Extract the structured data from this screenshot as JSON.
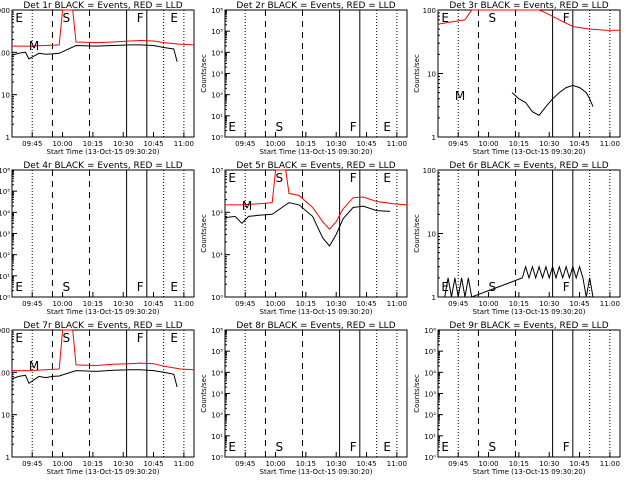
{
  "figure": {
    "common_xlabel": "Start Time (13-Oct-15 09:30:20)",
    "ylabel": "Counts/sec",
    "x_ticks": [
      "09:45",
      "10:00",
      "10:15",
      "10:30",
      "10:45",
      "11:00"
    ],
    "colors": {
      "events": "#000000",
      "lld": "#ff0000"
    }
  },
  "chart_data": [
    {
      "id": "det1r",
      "type": "line",
      "title": "Det 1r BLACK = Events, RED = LLD",
      "yscale": "log",
      "ylim": [
        1,
        1000
      ],
      "y_ticks": [
        "1",
        "10",
        "100",
        "1000"
      ],
      "markers": [
        "E",
        "M",
        "S",
        "F",
        "E"
      ],
      "series": [
        {
          "color": "#ff0000",
          "points": [
            [
              0,
              140
            ],
            [
              5,
              140
            ],
            [
              10,
              145
            ],
            [
              14,
              150
            ],
            [
              15,
              1000
            ],
            [
              18,
              1000
            ],
            [
              19,
              175
            ],
            [
              25,
              170
            ],
            [
              30,
              175
            ],
            [
              35,
              185
            ],
            [
              38,
              190
            ],
            [
              42,
              185
            ],
            [
              45,
              170
            ],
            [
              50,
              155
            ],
            [
              54,
              150
            ]
          ]
        },
        {
          "color": "#000000",
          "points": [
            [
              0,
              85
            ],
            [
              2,
              95
            ],
            [
              4,
              100
            ],
            [
              5,
              70
            ],
            [
              8,
              95
            ],
            [
              10,
              90
            ],
            [
              12,
              92
            ],
            [
              14,
              95
            ],
            [
              19,
              145
            ],
            [
              25,
              140
            ],
            [
              30,
              145
            ],
            [
              35,
              150
            ],
            [
              38,
              150
            ],
            [
              42,
              145
            ],
            [
              45,
              130
            ],
            [
              48,
              120
            ],
            [
              49,
              60
            ]
          ]
        }
      ]
    },
    {
      "id": "det2r",
      "type": "line",
      "title": "Det 2r BLACK = Events, RED = LLD",
      "yscale": "log",
      "ylim": [
        1,
        1000000
      ],
      "y_ticks": [
        "10⁰",
        "10¹",
        "10²",
        "10³",
        "10⁴",
        "10⁵",
        "10⁶"
      ],
      "markers": [
        "E",
        "S",
        "F",
        "E"
      ],
      "series": []
    },
    {
      "id": "det3r",
      "type": "line",
      "title": "Det 3r BLACK = Events, RED = LLD",
      "yscale": "log",
      "ylim": [
        1,
        100
      ],
      "y_ticks": [
        "1",
        "10",
        "100"
      ],
      "markers": [
        "S",
        "F",
        "E",
        "M"
      ],
      "series": [
        {
          "color": "#ff0000",
          "points": [
            [
              0,
              60
            ],
            [
              4,
              65
            ],
            [
              8,
              70
            ],
            [
              10,
              100
            ],
            [
              30,
              100
            ],
            [
              32,
              90
            ],
            [
              36,
              70
            ],
            [
              40,
              55
            ],
            [
              45,
              50
            ],
            [
              50,
              48
            ],
            [
              54,
              48
            ]
          ]
        },
        {
          "color": "#000000",
          "points": [
            [
              22,
              5
            ],
            [
              24,
              4
            ],
            [
              26,
              3.5
            ],
            [
              28,
              2.5
            ],
            [
              30,
              2.2
            ],
            [
              32,
              3
            ],
            [
              34,
              4
            ],
            [
              36,
              5
            ],
            [
              38,
              6
            ],
            [
              40,
              6.5
            ],
            [
              42,
              6
            ],
            [
              44,
              5
            ],
            [
              45,
              4
            ],
            [
              46,
              3
            ]
          ]
        }
      ]
    },
    {
      "id": "det4r",
      "type": "line",
      "title": "Det 4r BLACK = Events, RED = LLD",
      "yscale": "log",
      "ylim": [
        1,
        1000000
      ],
      "y_ticks": [
        "10⁰",
        "10¹",
        "10²",
        "10³",
        "10⁴",
        "10⁵",
        "10⁶"
      ],
      "markers": [
        "E",
        "S",
        "F",
        "E"
      ],
      "series": []
    },
    {
      "id": "det5r",
      "type": "line",
      "title": "Det 5r BLACK = Events, RED = LLD",
      "yscale": "log",
      "ylim": [
        1,
        1000
      ],
      "y_ticks": [
        "10⁰",
        "10¹",
        "10²",
        "10³"
      ],
      "markers": [
        "E",
        "M",
        "S",
        "F",
        "E"
      ],
      "series": [
        {
          "color": "#ff0000",
          "points": [
            [
              0,
              150
            ],
            [
              5,
              150
            ],
            [
              10,
              160
            ],
            [
              14,
              170
            ],
            [
              15,
              1000
            ],
            [
              18,
              1000
            ],
            [
              19,
              280
            ],
            [
              22,
              250
            ],
            [
              26,
              130
            ],
            [
              29,
              60
            ],
            [
              31,
              40
            ],
            [
              33,
              60
            ],
            [
              35,
              120
            ],
            [
              38,
              220
            ],
            [
              41,
              230
            ],
            [
              45,
              180
            ],
            [
              50,
              160
            ],
            [
              54,
              150
            ]
          ]
        },
        {
          "color": "#000000",
          "points": [
            [
              0,
              75
            ],
            [
              3,
              80
            ],
            [
              5,
              55
            ],
            [
              7,
              80
            ],
            [
              10,
              85
            ],
            [
              14,
              90
            ],
            [
              19,
              170
            ],
            [
              22,
              150
            ],
            [
              26,
              80
            ],
            [
              29,
              25
            ],
            [
              31,
              16
            ],
            [
              33,
              30
            ],
            [
              35,
              70
            ],
            [
              38,
              130
            ],
            [
              41,
              140
            ],
            [
              45,
              110
            ],
            [
              49,
              105
            ]
          ]
        }
      ]
    },
    {
      "id": "det6r",
      "type": "line",
      "title": "Det 6r BLACK = Events, RED = LLD",
      "yscale": "log",
      "ylim": [
        1,
        100
      ],
      "y_ticks": [
        "1",
        "10",
        "100"
      ],
      "markers": [
        "S",
        "F",
        "E"
      ],
      "series": [
        {
          "color": "#000000",
          "points": [
            [
              2,
              1
            ],
            [
              3,
              2
            ],
            [
              4,
              1
            ],
            [
              5,
              2
            ],
            [
              6,
              1
            ],
            [
              7,
              2
            ],
            [
              8,
              1
            ],
            [
              9,
              2
            ],
            [
              10,
              1
            ],
            [
              25,
              2
            ],
            [
              26,
              3
            ],
            [
              27,
              2
            ],
            [
              28,
              3
            ],
            [
              29,
              2
            ],
            [
              30,
              3
            ],
            [
              31,
              2
            ],
            [
              32,
              3
            ],
            [
              33,
              2
            ],
            [
              34,
              3
            ],
            [
              35,
              2
            ],
            [
              36,
              3
            ],
            [
              37,
              2
            ],
            [
              38,
              3
            ],
            [
              39,
              2
            ],
            [
              40,
              3
            ],
            [
              41,
              2
            ],
            [
              42,
              3
            ],
            [
              43,
              2
            ],
            [
              44,
              1
            ],
            [
              45,
              2
            ],
            [
              46,
              1
            ]
          ]
        }
      ]
    },
    {
      "id": "det7r",
      "type": "line",
      "title": "Det 7r BLACK = Events, RED = LLD",
      "yscale": "log",
      "ylim": [
        1,
        1000
      ],
      "y_ticks": [
        "1",
        "10",
        "100",
        "1000"
      ],
      "markers": [
        "E",
        "M",
        "S",
        "F",
        "E"
      ],
      "series": [
        {
          "color": "#ff0000",
          "points": [
            [
              0,
              110
            ],
            [
              5,
              110
            ],
            [
              10,
              115
            ],
            [
              14,
              120
            ],
            [
              15,
              1000
            ],
            [
              18,
              1000
            ],
            [
              19,
              150
            ],
            [
              25,
              145
            ],
            [
              30,
              155
            ],
            [
              35,
              160
            ],
            [
              38,
              165
            ],
            [
              42,
              160
            ],
            [
              45,
              140
            ],
            [
              50,
              120
            ],
            [
              54,
              115
            ]
          ]
        },
        {
          "color": "#000000",
          "points": [
            [
              0,
              70
            ],
            [
              2,
              80
            ],
            [
              4,
              85
            ],
            [
              5,
              55
            ],
            [
              8,
              80
            ],
            [
              10,
              75
            ],
            [
              12,
              80
            ],
            [
              14,
              82
            ],
            [
              19,
              110
            ],
            [
              25,
              105
            ],
            [
              30,
              112
            ],
            [
              35,
              115
            ],
            [
              38,
              115
            ],
            [
              42,
              110
            ],
            [
              45,
              100
            ],
            [
              48,
              90
            ],
            [
              49,
              45
            ]
          ]
        }
      ]
    },
    {
      "id": "det8r",
      "type": "line",
      "title": "Det 8r BLACK = Events, RED = LLD",
      "yscale": "log",
      "ylim": [
        1,
        1000000
      ],
      "y_ticks": [
        "10⁰",
        "10¹",
        "10²",
        "10³",
        "10⁴",
        "10⁵",
        "10⁶"
      ],
      "markers": [
        "E",
        "S",
        "F",
        "E"
      ],
      "series": []
    },
    {
      "id": "det9r",
      "type": "line",
      "title": "Det 9r BLACK = Events, RED = LLD",
      "yscale": "log",
      "ylim": [
        1,
        1000000
      ],
      "y_ticks": [
        "10⁰",
        "10¹",
        "10²",
        "10³",
        "10⁴",
        "10⁵",
        "10⁶"
      ],
      "markers": [
        "S",
        "F",
        "E"
      ],
      "series": []
    }
  ]
}
